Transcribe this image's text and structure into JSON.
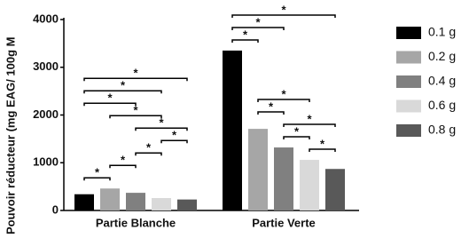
{
  "chart_data": {
    "type": "bar",
    "y_label": "Pouvoir réducteur (mg EAG/ 100g M",
    "categories": [
      "Partie Blanche",
      "Partie Verte"
    ],
    "series": [
      {
        "name": "0.1 g",
        "color": "#000000",
        "values": [
          340,
          3350
        ]
      },
      {
        "name": "0.2 g",
        "color": "#a6a6a6",
        "values": [
          460,
          1710
        ]
      },
      {
        "name": "0.4 g",
        "color": "#808080",
        "values": [
          370,
          1320
        ]
      },
      {
        "name": "0.6 g",
        "color": "#d9d9d9",
        "values": [
          260,
          1060
        ]
      },
      {
        "name": "0.8 g",
        "color": "#595959",
        "values": [
          230,
          870
        ]
      }
    ],
    "ylim": [
      0,
      4000
    ],
    "yticks": [
      0,
      1000,
      2000,
      3000,
      4000
    ],
    "significance": [
      {
        "category": 0,
        "from": 0,
        "to": 1,
        "text": "*"
      },
      {
        "category": 0,
        "from": 1,
        "to": 2,
        "text": "*"
      },
      {
        "category": 0,
        "from": 2,
        "to": 3,
        "text": "*"
      },
      {
        "category": 0,
        "from": 3,
        "to": 4,
        "text": "*"
      },
      {
        "category": 0,
        "from": 2,
        "to": 4,
        "text": "*"
      },
      {
        "category": 0,
        "from": 1,
        "to": 3,
        "text": "*"
      },
      {
        "category": 0,
        "from": 0,
        "to": 2,
        "text": "*"
      },
      {
        "category": 0,
        "from": 0,
        "to": 3,
        "text": "*"
      },
      {
        "category": 0,
        "from": 0,
        "to": 4,
        "text": "*"
      },
      {
        "category": 1,
        "from": 3,
        "to": 4,
        "text": "*"
      },
      {
        "category": 1,
        "from": 2,
        "to": 3,
        "text": "*"
      },
      {
        "category": 1,
        "from": 2,
        "to": 4,
        "text": "*"
      },
      {
        "category": 1,
        "from": 1,
        "to": 2,
        "text": "*"
      },
      {
        "category": 1,
        "from": 1,
        "to": 3,
        "text": "*"
      },
      {
        "category": 1,
        "from": 0,
        "to": 1,
        "text": "*"
      },
      {
        "category": 1,
        "from": 0,
        "to": 2,
        "text": "*"
      },
      {
        "category": 1,
        "from": 0,
        "to": 4,
        "text": "*"
      }
    ]
  }
}
